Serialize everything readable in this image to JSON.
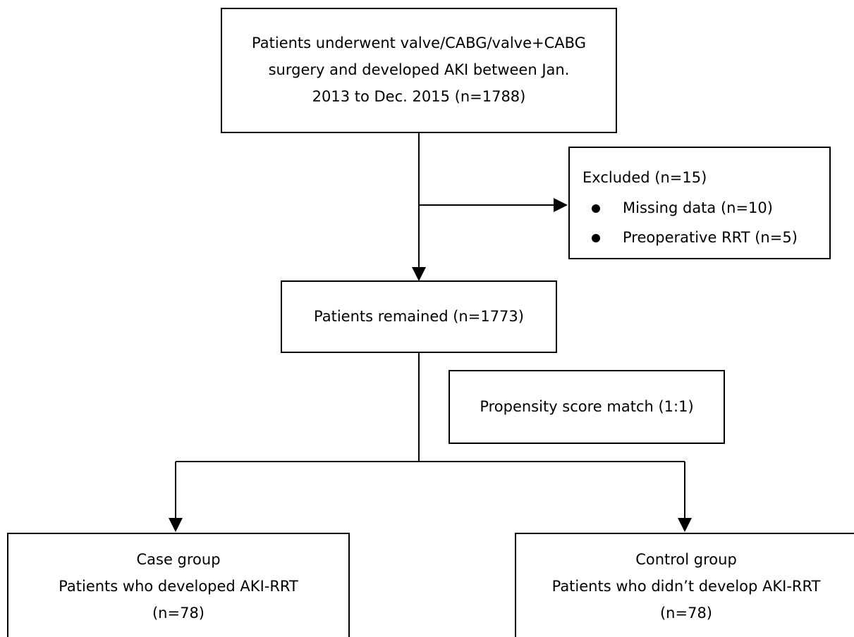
{
  "nodes": [
    {
      "lines": [
        "Patients underwent valve/CABG/valve+CABG",
        "surgery and developed AKI between Jan.",
        "2013 to Dec. 2015 (n=1788)"
      ]
    },
    {
      "title": "Excluded (n=15)",
      "items": [
        "Missing data (n=10)",
        "Preoperative RRT (n=5)"
      ]
    },
    {
      "lines": [
        "Patients remained (n=1773)"
      ]
    },
    {
      "lines": [
        "Propensity score match (1:1)"
      ]
    },
    {
      "lines": [
        "Case group",
        "Patients who developed AKI-RRT",
        "(n=78)"
      ]
    },
    {
      "lines": [
        "Control group",
        "Patients who didn’t develop AKI-RRT",
        "(n=78)"
      ]
    }
  ]
}
